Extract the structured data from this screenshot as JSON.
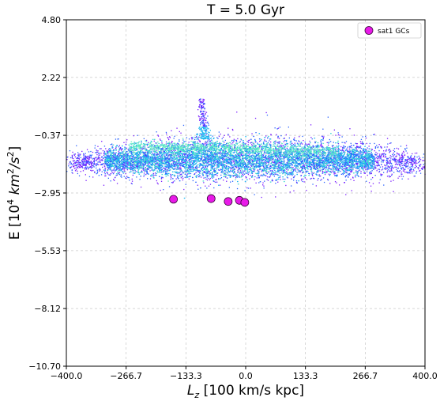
{
  "chart_data": {
    "type": "scatter",
    "title": "T = 5.0 Gyr",
    "xlabel_main": "L",
    "xlabel_sub": "z",
    "xlabel_unit": " [100 km/s kpc]",
    "ylabel_main": "E [10",
    "ylabel_exp1": "4",
    "ylabel_mid": " km",
    "ylabel_exp2": "2",
    "ylabel_end": "/s",
    "ylabel_exp3": "2",
    "ylabel_close": "]",
    "xlim": [
      -400.0,
      400.0
    ],
    "ylim": [
      -10.7,
      4.8
    ],
    "x_ticks": [
      "-400.0",
      "-266.7",
      "-133.3",
      "0.0",
      "133.3",
      "266.7",
      "400.0"
    ],
    "x_tick_values": [
      -400.0,
      -266.7,
      -133.3,
      0.0,
      133.3,
      266.7,
      400.0
    ],
    "y_ticks": [
      "4.80",
      "2.22",
      "-0.37",
      "-2.95",
      "-5.53",
      "-8.12",
      "-10.70"
    ],
    "y_tick_values": [
      4.8,
      2.22,
      -0.37,
      -2.95,
      -5.53,
      -8.12,
      -10.7
    ],
    "grid": true,
    "legend_position": "top-right",
    "background_particles": {
      "description_colormap": [
        "#7a1dff",
        "#2a63ff",
        "#1fb8f0",
        "#3fd8d2",
        "#6ff0c0"
      ],
      "disk_center_E": -1.55,
      "disk_halfwidth_Lz": 385,
      "disk_halfheight_E": 1.45,
      "spike_Lz": -92,
      "spike_E_range": [
        -0.5,
        1.3
      ]
    },
    "series": [
      {
        "name": "sat1 GCs",
        "color": "#e81ae8",
        "edgecolor": "#3a003a",
        "points": [
          {
            "x": -161,
            "y": -3.23
          },
          {
            "x": -77,
            "y": -3.2
          },
          {
            "x": -39,
            "y": -3.33
          },
          {
            "x": -14,
            "y": -3.28
          },
          {
            "x": -2,
            "y": -3.37
          }
        ]
      }
    ]
  }
}
